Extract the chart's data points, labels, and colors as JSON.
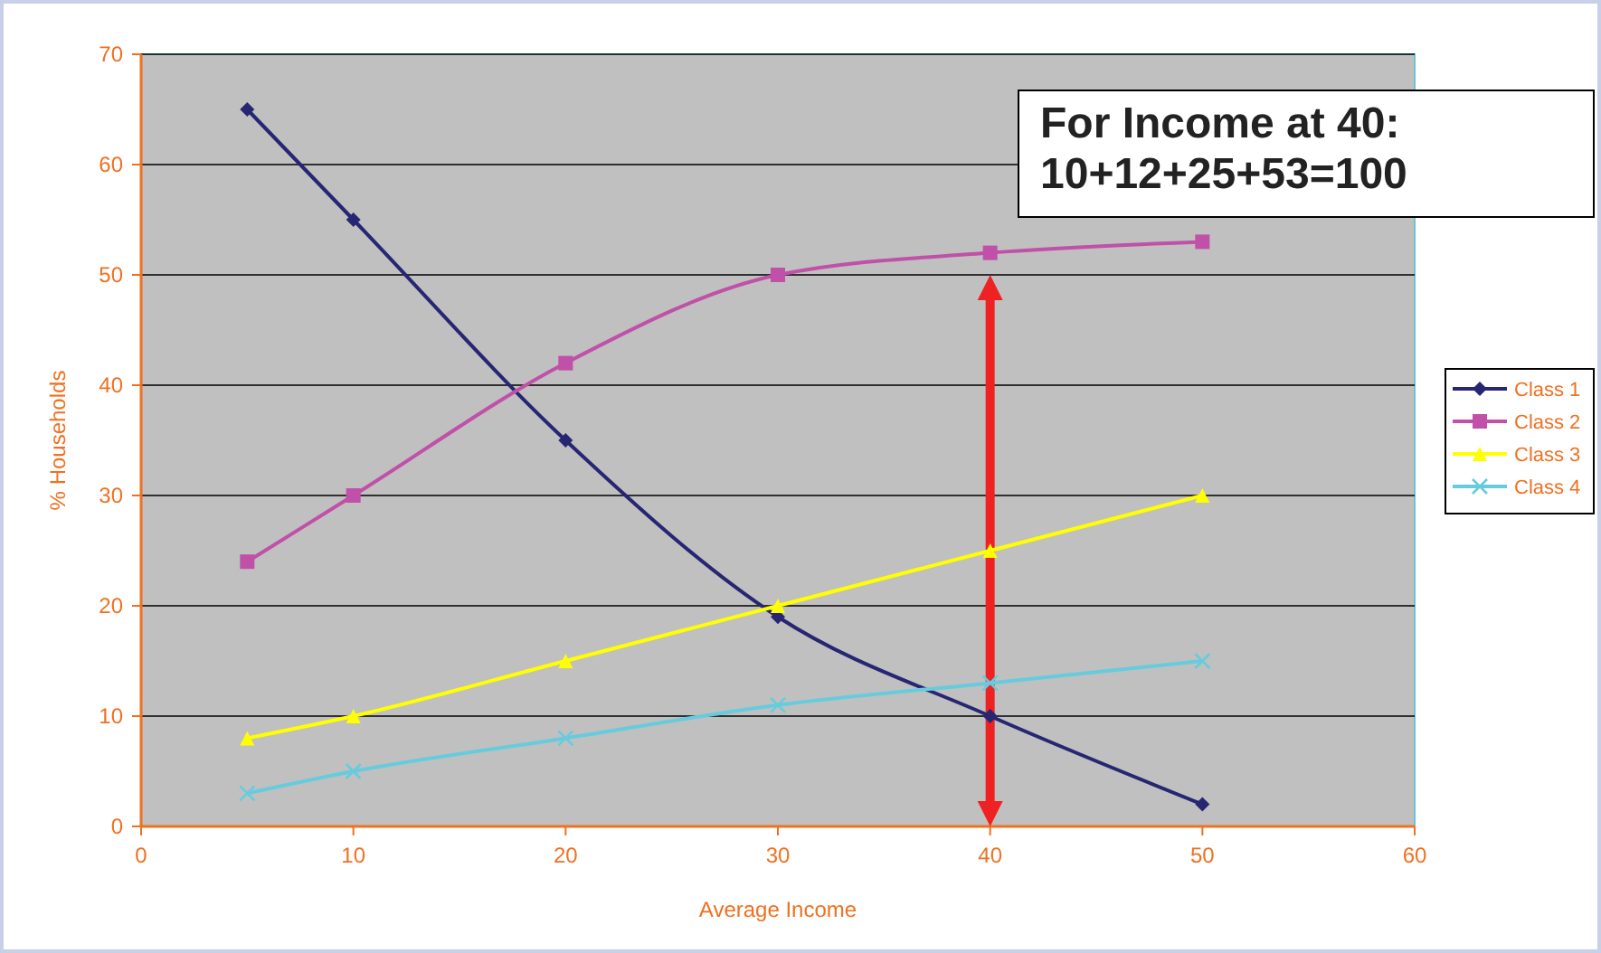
{
  "chart_data": {
    "type": "line",
    "xlabel": "Average Income",
    "ylabel": "% Households",
    "x": [
      5,
      10,
      20,
      30,
      40,
      50
    ],
    "series": [
      {
        "name": "Class 1",
        "color": "#262673",
        "marker": "diamond",
        "values": [
          65,
          55,
          35,
          19,
          10,
          2
        ]
      },
      {
        "name": "Class 2",
        "color": "#c050a8",
        "marker": "square",
        "values": [
          24,
          30,
          42,
          50,
          52,
          53
        ]
      },
      {
        "name": "Class 3",
        "color": "#ffff00",
        "marker": "triangle",
        "values": [
          8,
          10,
          15,
          20,
          25,
          30
        ]
      },
      {
        "name": "Class 4",
        "color": "#66ccdd",
        "marker": "cross",
        "values": [
          3,
          5,
          8,
          11,
          13,
          15
        ]
      }
    ],
    "xlim": [
      0,
      60
    ],
    "xticks": [
      0,
      10,
      20,
      30,
      40,
      50,
      60
    ],
    "ylim": [
      0,
      70
    ],
    "yticks": [
      0,
      10,
      20,
      30,
      40,
      50,
      60,
      70
    ],
    "grid": "y",
    "legend": "right",
    "annotations": [
      "For Income at 40:\n10+12+25+53=100"
    ]
  }
}
